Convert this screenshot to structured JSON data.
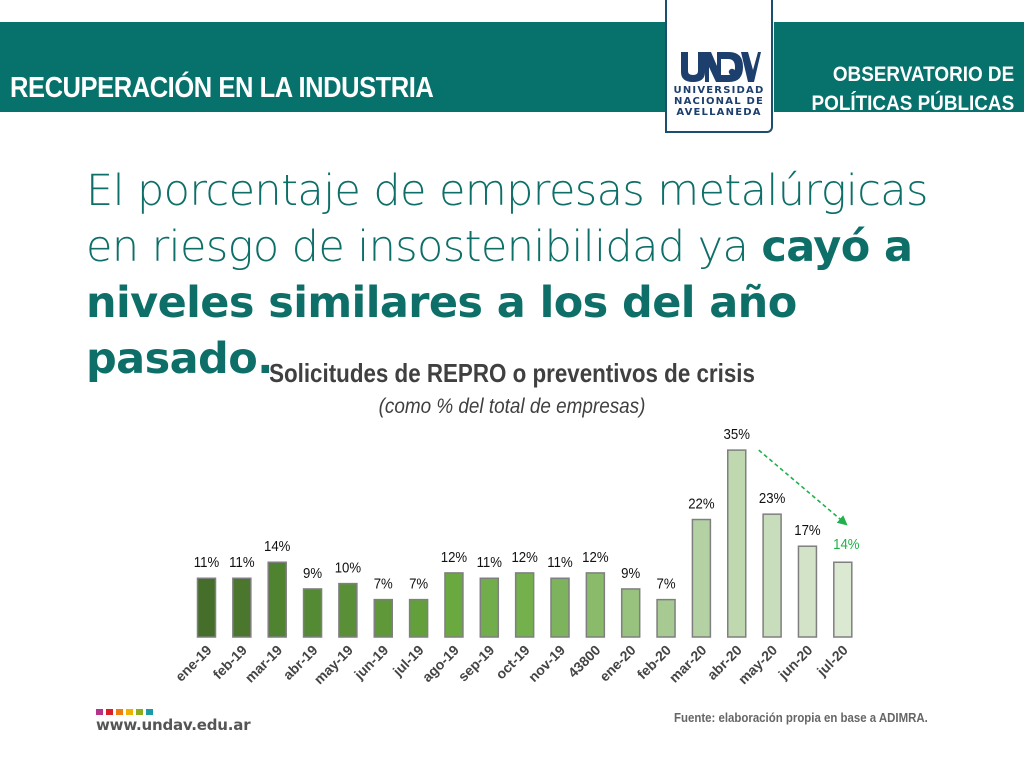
{
  "header": {
    "section_title": "RECUPERACIÓN EN LA INDUSTRIA",
    "observatory_line1": "OBSERVATORIO DE",
    "observatory_line2": "POLÍTICAS PÚBLICAS",
    "logo": {
      "mark": "UNDAV",
      "line1": "UNIVERSIDAD",
      "line2": "NACIONAL DE",
      "line3": "AVELLANEDA"
    },
    "brand_color": "#07716b",
    "logo_color": "#1c3f6e"
  },
  "headline": {
    "part1": "El porcentaje de empresas metalúrgicas en riesgo de insostenibilidad ya ",
    "line1": "El porcentaje de empresas metalúrgicas",
    "line2_light": "en riesgo de insostenibilidad ya ",
    "line2_bold": "cayó a",
    "line3_bold": "niveles similares a los del año pasado.",
    "color": "#0d6f68"
  },
  "chart_data": {
    "type": "bar",
    "title": "Solicitudes de REPRO o preventivos de crisis",
    "subtitle": "(como % del total de empresas)",
    "xlabel": "",
    "ylabel": "",
    "ylim": [
      0,
      35
    ],
    "grid": false,
    "categories": [
      "ene-19",
      "feb-19",
      "mar-19",
      "abr-19",
      "may-19",
      "jun-19",
      "jul-19",
      "ago-19",
      "sep-19",
      "oct-19",
      "nov-19",
      "43800",
      "ene-20",
      "feb-20",
      "mar-20",
      "abr-20",
      "may-20",
      "jun-20",
      "jul-20"
    ],
    "values": [
      11,
      11,
      14,
      9,
      10,
      7,
      7,
      12,
      11,
      12,
      11,
      12,
      9,
      7,
      22,
      35,
      23,
      17,
      14
    ],
    "labels": [
      "11%",
      "11%",
      "14%",
      "9%",
      "10%",
      "7%",
      "7%",
      "12%",
      "11%",
      "12%",
      "11%",
      "12%",
      "9%",
      "7%",
      "22%",
      "35%",
      "23%",
      "17%",
      "14%"
    ],
    "bar_colors": [
      "#456e2a",
      "#4a772d",
      "#508330",
      "#548a33",
      "#598f36",
      "#5e9839",
      "#63a03c",
      "#6aa840",
      "#72ad4c",
      "#74b04b",
      "#7db35c",
      "#8abb6b",
      "#98c37e",
      "#a6ca91",
      "#b4d1a3",
      "#bfd8b0",
      "#c8ddbb",
      "#d2e3c7",
      "#dbe8d2"
    ],
    "bar_border": "#7f7f7f",
    "highlight_index": 18,
    "highlight_color": "#1fb14a",
    "annotation": {
      "type": "dashed-arrow",
      "from_category": "abr-20",
      "to_category": "jul-20",
      "color": "#1fb14a"
    }
  },
  "footer": {
    "url": "www.undav.edu.ar",
    "dot_colors": [
      "#b5338a",
      "#d81f2a",
      "#ee7d10",
      "#f0b100",
      "#8fae1b",
      "#1d9aa8"
    ],
    "source": "Fuente: elaboración propia en base a ADIMRA."
  }
}
